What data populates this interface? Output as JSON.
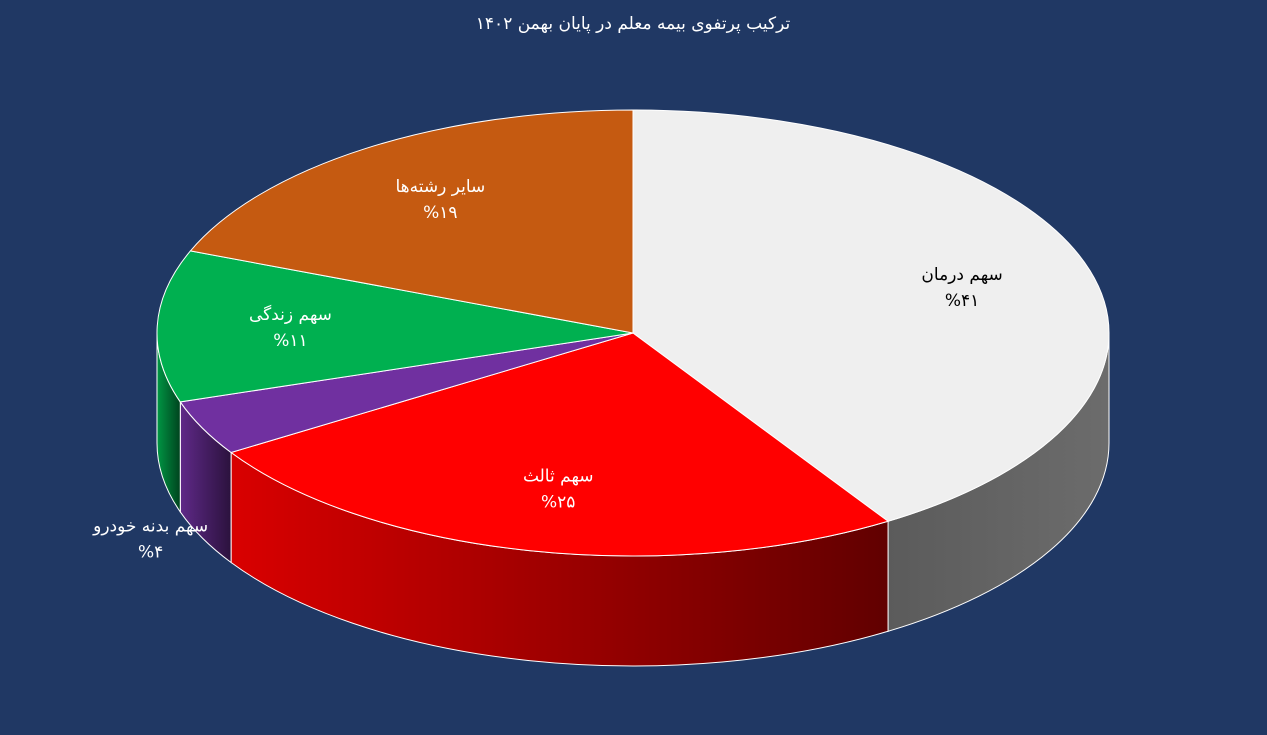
{
  "chart_data": {
    "type": "pie",
    "title": "ترکیب پرتفوی بیمه معلم در پایان بهمن ۱۴۰۲",
    "categories": [
      "سهم درمان",
      "سهم ثالث",
      "سهم بدنه خودرو",
      "سهم زندگی",
      "سایر رشته‌ها"
    ],
    "values": [
      41,
      25,
      4,
      11,
      19
    ],
    "value_labels": [
      "%۴۱",
      "%۲۵",
      "%۴",
      "%۱۱",
      "%۱۹"
    ],
    "colors": [
      "#efefef",
      "#ff0000",
      "#7030a0",
      "#00b050",
      "#c55a11"
    ]
  }
}
